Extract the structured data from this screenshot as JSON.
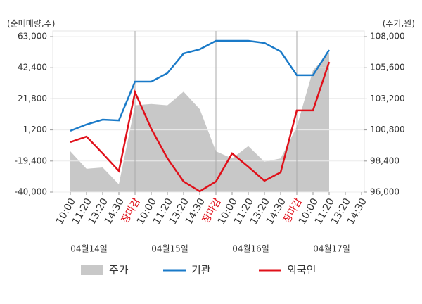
{
  "chart_data": {
    "type": "line",
    "y_label": "(순매매량,주)",
    "y2_label": "(주가,원)",
    "days": [
      {
        "date": "04월14일",
        "times": [
          "10:00",
          "11:20",
          "13:20",
          "14:30"
        ],
        "close": "장마감"
      },
      {
        "date": "04월15일",
        "times": [
          "10:00",
          "11:20",
          "13:20",
          "14:30"
        ],
        "close": "장마감"
      },
      {
        "date": "04월16일",
        "times": [
          "10:00",
          "11:20",
          "13:20",
          "14:30"
        ],
        "close": "장마감"
      },
      {
        "date": "04월17일",
        "times": [
          "10:00",
          "11:20",
          "13:20",
          "14:30"
        ]
      }
    ],
    "close_color": "#e0101a",
    "ylim": [
      -40000,
      63000
    ],
    "yticks": [
      {
        "value": -40000,
        "label": "-40,000"
      },
      {
        "value": -19400,
        "label": "-19,400"
      },
      {
        "value": 1200,
        "label": "1,200"
      },
      {
        "value": 21800,
        "label": "21,800"
      },
      {
        "value": 42400,
        "label": "42,400"
      },
      {
        "value": 63000,
        "label": "63,000"
      }
    ],
    "y2lim": [
      96000,
      108000
    ],
    "y2ticks": [
      {
        "value": 96000,
        "label": "96,000"
      },
      {
        "value": 98400,
        "label": "98,400"
      },
      {
        "value": 100800,
        "label": "100,800"
      },
      {
        "value": 103200,
        "label": "103,200"
      },
      {
        "value": 105600,
        "label": "105,600"
      },
      {
        "value": 108000,
        "label": "108,000"
      }
    ],
    "series": [
      {
        "name": "주가",
        "color": "#c8c8c8",
        "axis": "y2",
        "kind": "area",
        "values": [
          99150,
          97800,
          97900,
          96600,
          102700,
          102800,
          102700,
          103750,
          102400,
          99150,
          98600,
          99550,
          98350,
          98600,
          101050,
          105400,
          106750,
          null,
          null
        ]
      },
      {
        "name": "기관",
        "color": "#1a7ac8",
        "values": [
          600,
          4800,
          8000,
          7500,
          33200,
          33200,
          38800,
          51800,
          54600,
          60200,
          60200,
          60200,
          58800,
          53200,
          37400,
          37400,
          54100,
          null,
          null
        ]
      },
      {
        "name": "외국인",
        "color": "#e0101a",
        "values": [
          -6900,
          -3200,
          -14400,
          -26000,
          26200,
          2000,
          -17600,
          -33000,
          -39500,
          -33000,
          -14400,
          -23200,
          -32500,
          -26900,
          14100,
          14100,
          46200,
          null,
          null
        ]
      }
    ]
  }
}
